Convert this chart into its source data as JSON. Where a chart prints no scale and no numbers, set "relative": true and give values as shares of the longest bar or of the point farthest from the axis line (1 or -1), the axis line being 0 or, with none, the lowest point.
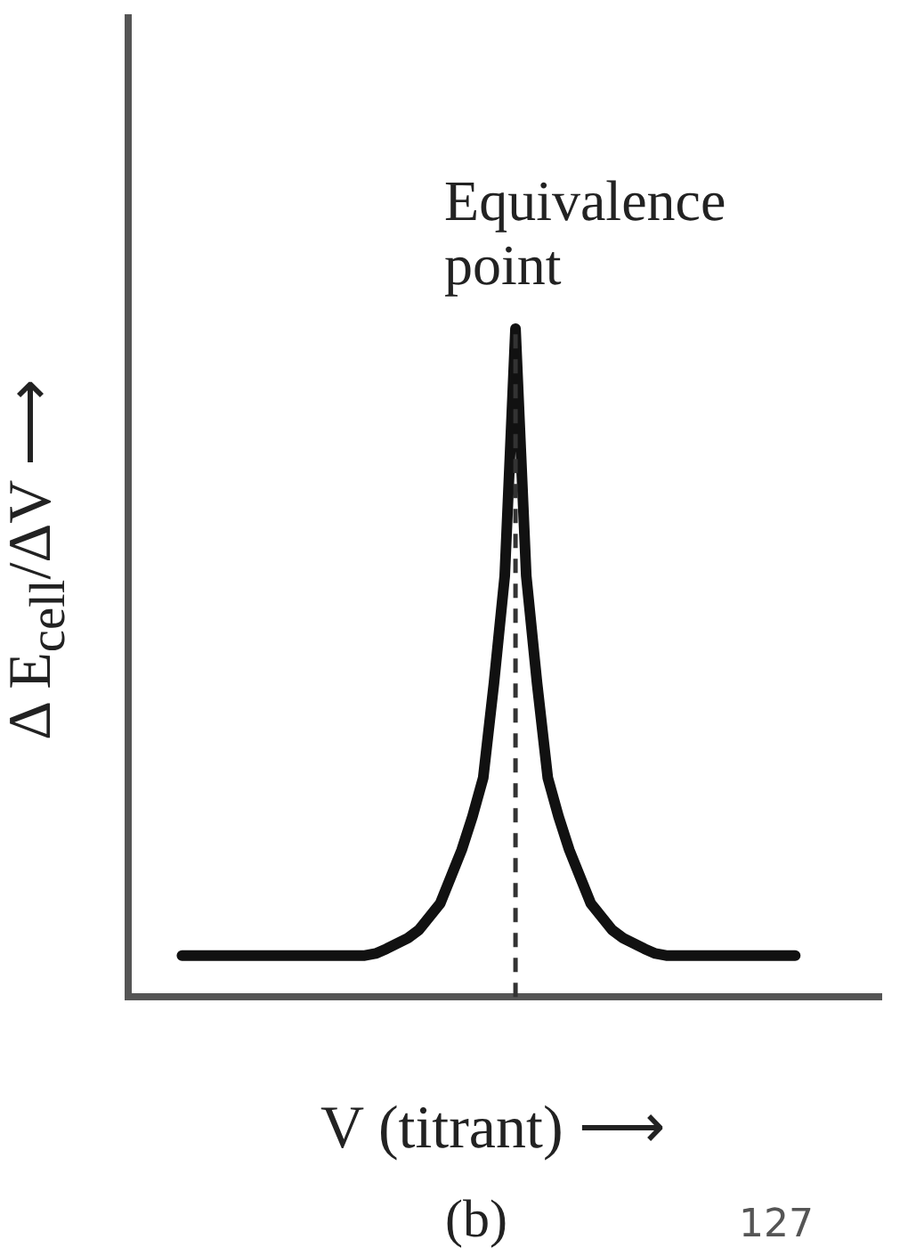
{
  "chart_data": {
    "type": "line",
    "relative": true,
    "grid": false,
    "legend": false,
    "marker": "none",
    "line_style": "solid",
    "xlabel": "V (titrant) ⟶",
    "ylabel": "Δ E$_{cell}$/ΔV ⟶",
    "categories": [
      null,
      null,
      null,
      null,
      null,
      null,
      null,
      null,
      null,
      null,
      null,
      null,
      null,
      null,
      null,
      null,
      null,
      null,
      null,
      null,
      null,
      null,
      null,
      null,
      null,
      null,
      null,
      null,
      null,
      null,
      null,
      null,
      null,
      null,
      null,
      null,
      null,
      null,
      null,
      null,
      null,
      null,
      null,
      null,
      null,
      null,
      null,
      null,
      null,
      null,
      null,
      null,
      null,
      null,
      null,
      null,
      null,
      null,
      null,
      null,
      null,
      null,
      null,
      null,
      null,
      null,
      null,
      null,
      null,
      null,
      null
    ],
    "series": [
      {
        "color": "#111111",
        "values": [
          null,
          null,
          null,
          null,
          null,
          0.062,
          0.062,
          0.062,
          0.062,
          0.062,
          0.062,
          0.062,
          0.062,
          0.062,
          0.062,
          0.062,
          0.062,
          0.062,
          0.062,
          0.062,
          0.062,
          0.062,
          0.062,
          0.065,
          0.072,
          0.08,
          0.088,
          0.1,
          0.12,
          0.14,
          0.18,
          0.22,
          0.27,
          0.328,
          0.47,
          0.63,
          1,
          0.63,
          0.47,
          0.328,
          0.27,
          0.22,
          0.18,
          0.14,
          0.12,
          0.1,
          0.088,
          0.08,
          0.072,
          0.065,
          0.062,
          0.062,
          0.062,
          0.062,
          0.062,
          0.062,
          0.062,
          0.062,
          0.062,
          0.062,
          0.062,
          0.062,
          0.062,
          null,
          null,
          null,
          null,
          null,
          null,
          null,
          null
        ]
      }
    ],
    "annotations": [
      "Equivalence point",
      "(b)",
      "127"
    ]
  }
}
